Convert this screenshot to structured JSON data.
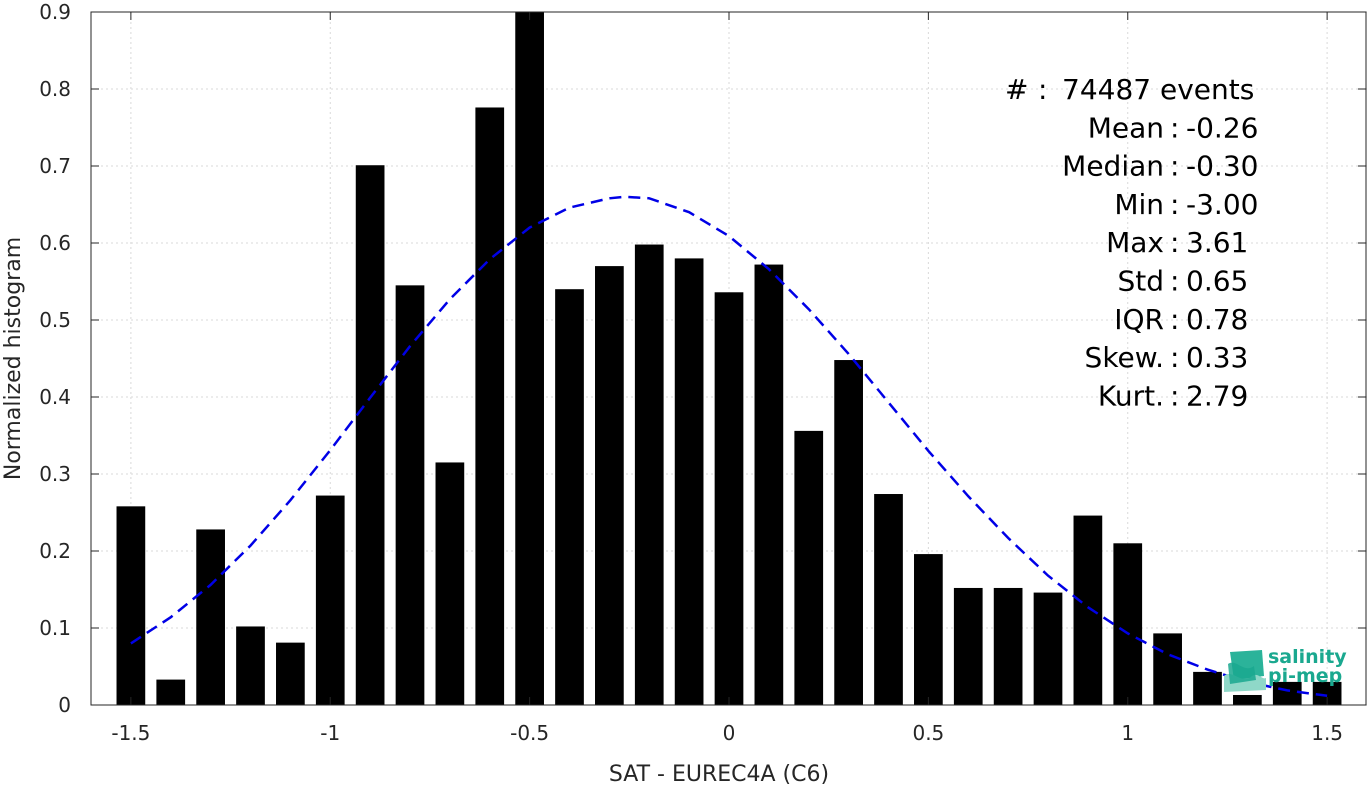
{
  "chart_data": {
    "type": "bar",
    "xlabel": "SAT - EUREC4A (C6)",
    "ylabel": "Normalized histogram",
    "xlim": [
      -1.6,
      1.6
    ],
    "ylim": [
      0,
      0.9
    ],
    "x_ticks": [
      -1.5,
      -1,
      -0.5,
      0,
      0.5,
      1,
      1.5
    ],
    "x_tick_labels": [
      "-1.5",
      "-1",
      "-0.5",
      "0",
      "0.5",
      "1",
      "1.5"
    ],
    "y_ticks": [
      0,
      0.1,
      0.2,
      0.3,
      0.4,
      0.5,
      0.6,
      0.7,
      0.8,
      0.9
    ],
    "y_tick_labels": [
      "0",
      "0.1",
      "0.2",
      "0.3",
      "0.4",
      "0.5",
      "0.6",
      "0.7",
      "0.8",
      "0.9"
    ],
    "grid": true,
    "bar_color": "#000000",
    "bars": {
      "x": [
        -1.5,
        -1.4,
        -1.3,
        -1.2,
        -1.1,
        -1.0,
        -0.9,
        -0.8,
        -0.7,
        -0.6,
        -0.5,
        -0.4,
        -0.3,
        -0.2,
        -0.1,
        0.0,
        0.1,
        0.2,
        0.3,
        0.4,
        0.5,
        0.6,
        0.7,
        0.8,
        0.9,
        1.0,
        1.1,
        1.2,
        1.3,
        1.4,
        1.5
      ],
      "values": [
        0.258,
        0.033,
        0.228,
        0.102,
        0.081,
        0.272,
        0.701,
        0.545,
        0.315,
        0.776,
        0.9,
        0.54,
        0.57,
        0.598,
        0.58,
        0.536,
        0.572,
        0.356,
        0.448,
        0.274,
        0.196,
        0.152,
        0.152,
        0.146,
        0.246,
        0.21,
        0.093,
        0.043,
        0.013,
        0.03,
        0.03
      ]
    },
    "fit_curve": {
      "style": "dashed",
      "color": "#0000e6",
      "x": [
        -1.5,
        -1.4,
        -1.3,
        -1.2,
        -1.1,
        -1.0,
        -0.9,
        -0.8,
        -0.7,
        -0.6,
        -0.5,
        -0.4,
        -0.3,
        -0.26,
        -0.2,
        -0.1,
        0.0,
        0.1,
        0.2,
        0.3,
        0.4,
        0.5,
        0.6,
        0.7,
        0.8,
        0.9,
        1.0,
        1.1,
        1.2,
        1.3,
        1.4,
        1.5
      ],
      "y": [
        0.08,
        0.114,
        0.156,
        0.207,
        0.266,
        0.331,
        0.399,
        0.466,
        0.527,
        0.579,
        0.62,
        0.646,
        0.658,
        0.66,
        0.658,
        0.64,
        0.609,
        0.566,
        0.514,
        0.456,
        0.393,
        0.33,
        0.271,
        0.217,
        0.168,
        0.127,
        0.093,
        0.066,
        0.046,
        0.03,
        0.019,
        0.012
      ]
    },
    "annotations": [
      {
        "label": "#",
        "sep": " : ",
        "value": "74487 events"
      },
      {
        "label": "Mean",
        "sep": " : ",
        "value": "-0.26"
      },
      {
        "label": "Median",
        "sep": " : ",
        "value": "-0.30"
      },
      {
        "label": "Min",
        "sep": " : ",
        "value": "-3.00"
      },
      {
        "label": "Max",
        "sep": " : ",
        "value": "3.61"
      },
      {
        "label": "Std",
        "sep": " : ",
        "value": "0.65"
      },
      {
        "label": "IQR",
        "sep": " : ",
        "value": "0.78"
      },
      {
        "label": "Skew.",
        "sep": " : ",
        "value": "0.33"
      },
      {
        "label": "Kurt.",
        "sep": " : ",
        "value": "2.79"
      }
    ]
  },
  "logo": {
    "line1": "salinity",
    "line2": "pi-mep",
    "icon": "wave-logo-icon",
    "color": "#1aa88f"
  }
}
